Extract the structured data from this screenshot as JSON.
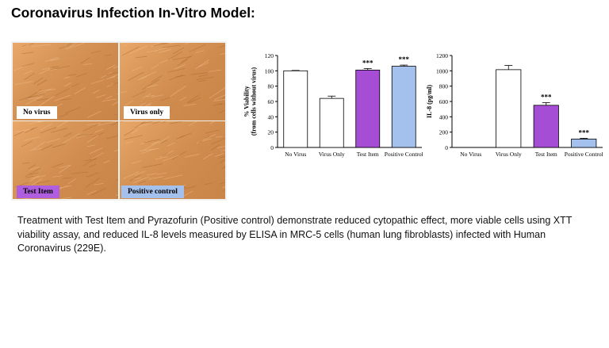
{
  "title": "Coronavirus Infection In-Vitro Model:",
  "micrographs": [
    {
      "label": "No virus",
      "style": "white"
    },
    {
      "label": "Virus only",
      "style": "white"
    },
    {
      "label": "Test Item",
      "style": "purple"
    },
    {
      "label": "Positive control",
      "style": "blue"
    }
  ],
  "chart_data": [
    {
      "type": "bar",
      "categories": [
        "No Virus",
        "Virus Only",
        "Test Item",
        "Positive Control"
      ],
      "values": [
        100,
        64,
        101,
        106
      ],
      "errors": [
        0.5,
        3,
        2,
        1.5
      ],
      "annotations": [
        "",
        "",
        "***",
        "***"
      ],
      "colors": [
        "#ffffff",
        "#ffffff",
        "#a64dd6",
        "#a4c0ec"
      ],
      "ylabel_lines": [
        "% Viability",
        "(from cells without virus)"
      ],
      "ylim": [
        0,
        120
      ],
      "yticks": [
        0,
        20,
        40,
        60,
        80,
        100,
        120
      ]
    },
    {
      "type": "bar",
      "categories": [
        "No Virus",
        "Virus Only",
        "Test Item",
        "Positive Control"
      ],
      "values": [
        0,
        1015,
        550,
        110
      ],
      "errors": [
        0,
        55,
        35,
        10
      ],
      "annotations": [
        "",
        "",
        "***",
        "***"
      ],
      "colors": [
        "#ffffff",
        "#ffffff",
        "#a64dd6",
        "#a4c0ec"
      ],
      "ylabel_lines": [
        "IL-8 (pg/ml)"
      ],
      "ylim": [
        0,
        1200
      ],
      "yticks": [
        0,
        200,
        400,
        600,
        800,
        1000,
        1200
      ]
    }
  ],
  "caption": "Treatment with Test Item and Pyrazofurin (Positive control) demonstrate reduced cytopathic effect, more viable cells using XTT viability assay, and reduced IL-8 levels measured by ELISA in MRC-5 cells (human lung fibroblasts) infected with Human Coronavirus (229E)."
}
